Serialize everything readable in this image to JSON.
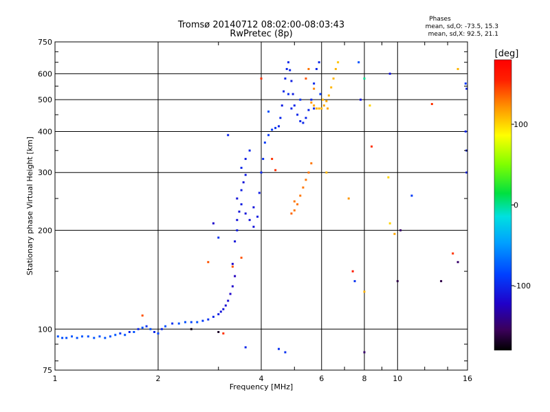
{
  "chart_data": {
    "type": "scatter",
    "title": "Tromsø 20140712 08:02:00-08:03:43",
    "subtitle": "RwPretec (8p)",
    "xlabel": "Frequency [MHz]",
    "ylabel": "Stationary phase Virtual Height [km]",
    "x_scale": "log",
    "y_scale": "log",
    "xlim": [
      1,
      16
    ],
    "ylim": [
      75,
      750
    ],
    "x_ticks": [
      1,
      2,
      4,
      6,
      8,
      10,
      16
    ],
    "x_tick_labels": [
      "1",
      "2",
      "4",
      "6",
      "8",
      "10",
      "16"
    ],
    "y_ticks": [
      75,
      100,
      200,
      300,
      400,
      500,
      600,
      750
    ],
    "y_tick_labels": [
      "75",
      "100",
      "200",
      "300",
      "400",
      "500",
      "600",
      "750"
    ],
    "grid": true,
    "phase_legend": {
      "heading": "Phases",
      "line1": "mean, sd,O: -73.5, 15.3",
      "line2": "mean, sd,X:  92.5, 21.1"
    },
    "colorbar": {
      "label": "[deg]",
      "range": [
        -180,
        180
      ],
      "ticks": [
        100,
        0,
        -100
      ],
      "tick_labels": [
        "100",
        "0",
        "-100"
      ],
      "colormap": "rainbow"
    },
    "series": [
      {
        "name": "",
        "points": [
          [
            1.02,
            95,
            -80
          ],
          [
            1.05,
            94,
            -80
          ],
          [
            1.08,
            94,
            -80
          ],
          [
            1.12,
            95,
            -78
          ],
          [
            1.16,
            94,
            -80
          ],
          [
            1.2,
            95,
            -78
          ],
          [
            1.25,
            95,
            -80
          ],
          [
            1.3,
            94,
            -78
          ],
          [
            1.35,
            95,
            -80
          ],
          [
            1.4,
            94,
            -78
          ],
          [
            1.45,
            95,
            -80
          ],
          [
            1.5,
            96,
            -78
          ],
          [
            1.55,
            97,
            -90
          ],
          [
            1.6,
            96,
            -80
          ],
          [
            1.65,
            98,
            -100
          ],
          [
            1.7,
            98,
            -80
          ],
          [
            1.75,
            100,
            -100
          ],
          [
            1.8,
            101,
            -80
          ],
          [
            1.85,
            102,
            -95
          ],
          [
            1.9,
            100,
            -80
          ],
          [
            1.95,
            98,
            -100
          ],
          [
            2.0,
            97,
            -85
          ],
          [
            2.05,
            100,
            -100
          ],
          [
            2.1,
            102,
            -80
          ],
          [
            2.2,
            104,
            -95
          ],
          [
            2.3,
            104,
            -80
          ],
          [
            2.4,
            105,
            -80
          ],
          [
            2.5,
            105,
            -85
          ],
          [
            2.6,
            105,
            -80
          ],
          [
            2.7,
            106,
            -90
          ],
          [
            2.8,
            107,
            -95
          ],
          [
            2.9,
            109,
            -100
          ],
          [
            3.0,
            111,
            -105
          ],
          [
            3.05,
            113,
            -110
          ],
          [
            3.1,
            115,
            -110
          ],
          [
            3.15,
            118,
            -115
          ],
          [
            3.2,
            122,
            -115
          ],
          [
            3.25,
            128,
            -120
          ],
          [
            3.3,
            135,
            -120
          ],
          [
            3.35,
            145,
            -125
          ],
          [
            3.3,
            158,
            -120
          ],
          [
            3.35,
            185,
            -110
          ],
          [
            3.4,
            200,
            -105
          ],
          [
            3.4,
            215,
            -110
          ],
          [
            3.45,
            228,
            -110
          ],
          [
            3.5,
            240,
            -105
          ],
          [
            3.4,
            250,
            -110
          ],
          [
            3.5,
            265,
            -105
          ],
          [
            3.55,
            280,
            -110
          ],
          [
            3.6,
            295,
            -105
          ],
          [
            3.5,
            310,
            -100
          ],
          [
            3.6,
            330,
            -105
          ],
          [
            3.7,
            350,
            -100
          ],
          [
            3.6,
            225,
            -110
          ],
          [
            3.7,
            215,
            -110
          ],
          [
            3.8,
            205,
            -110
          ],
          [
            3.9,
            220,
            -105
          ],
          [
            3.8,
            235,
            -110
          ],
          [
            3.95,
            260,
            -105
          ],
          [
            4.0,
            300,
            -100
          ],
          [
            4.05,
            330,
            -95
          ],
          [
            4.1,
            370,
            -90
          ],
          [
            4.2,
            390,
            -90
          ],
          [
            4.3,
            405,
            -90
          ],
          [
            4.4,
            410,
            -95
          ],
          [
            4.5,
            415,
            -100
          ],
          [
            4.55,
            440,
            -100
          ],
          [
            4.6,
            480,
            -105
          ],
          [
            4.65,
            530,
            -100
          ],
          [
            4.7,
            580,
            -100
          ],
          [
            4.75,
            620,
            -100
          ],
          [
            4.8,
            650,
            -100
          ],
          [
            4.85,
            615,
            -100
          ],
          [
            4.9,
            570,
            -105
          ],
          [
            4.95,
            520,
            -105
          ],
          [
            5.0,
            480,
            -100
          ],
          [
            5.1,
            450,
            -100
          ],
          [
            5.2,
            430,
            -100
          ],
          [
            5.3,
            425,
            -100
          ],
          [
            5.4,
            440,
            -100
          ],
          [
            5.5,
            465,
            -100
          ],
          [
            5.6,
            500,
            -100
          ],
          [
            5.7,
            560,
            -100
          ],
          [
            5.8,
            620,
            -100
          ],
          [
            5.9,
            650,
            -100
          ],
          [
            5.95,
            520,
            -90
          ],
          [
            4.2,
            460,
            -80
          ],
          [
            4.8,
            520,
            -95
          ],
          [
            4.9,
            470,
            -100
          ],
          [
            5.2,
            500,
            -95
          ],
          [
            5.7,
            470,
            -100
          ],
          [
            3.0,
            190,
            -95
          ],
          [
            3.2,
            390,
            -100
          ]
        ]
      },
      {
        "name": "",
        "points": [
          [
            5.6,
            490,
            120
          ],
          [
            5.7,
            480,
            115
          ],
          [
            5.8,
            470,
            110
          ],
          [
            5.9,
            470,
            110
          ],
          [
            6.0,
            470,
            110
          ],
          [
            6.1,
            480,
            115
          ],
          [
            6.2,
            495,
            115
          ],
          [
            6.3,
            515,
            110
          ],
          [
            6.4,
            545,
            110
          ],
          [
            6.5,
            580,
            110
          ],
          [
            6.6,
            620,
            110
          ],
          [
            6.7,
            650,
            105
          ],
          [
            6.05,
            500,
            110
          ],
          [
            6.25,
            470,
            115
          ],
          [
            5.7,
            540,
            125
          ],
          [
            5.5,
            620,
            130
          ],
          [
            5.4,
            580,
            140
          ],
          [
            5.0,
            230,
            130
          ],
          [
            5.1,
            240,
            130
          ],
          [
            5.2,
            255,
            130
          ],
          [
            5.3,
            270,
            130
          ],
          [
            5.4,
            285,
            130
          ],
          [
            5.0,
            245,
            130
          ],
          [
            5.5,
            300,
            130
          ],
          [
            5.6,
            320,
            130
          ],
          [
            4.9,
            225,
            135
          ]
        ]
      },
      {
        "name": "",
        "points": [
          [
            1.8,
            110,
            140
          ],
          [
            2.8,
            160,
            140
          ],
          [
            3.3,
            155,
            140
          ],
          [
            3.5,
            165,
            140
          ],
          [
            2.5,
            100,
            -175
          ],
          [
            3.1,
            97,
            150
          ],
          [
            4.0,
            580,
            150
          ],
          [
            4.4,
            305,
            150
          ],
          [
            6.2,
            300,
            110
          ],
          [
            7.2,
            250,
            120
          ],
          [
            7.4,
            150,
            160
          ],
          [
            8.0,
            130,
            110
          ],
          [
            8.4,
            360,
            150
          ],
          [
            8.3,
            480,
            100
          ],
          [
            9.4,
            290,
            100
          ],
          [
            9.5,
            210,
            100
          ],
          [
            9.8,
            195,
            115
          ],
          [
            10.2,
            200,
            -150
          ],
          [
            11.0,
            255,
            -90
          ],
          [
            12.6,
            485,
            150
          ],
          [
            14.5,
            170,
            150
          ],
          [
            15.0,
            160,
            -150
          ],
          [
            15.0,
            620,
            110
          ],
          [
            15.8,
            560,
            -90
          ],
          [
            15.9,
            540,
            -100
          ],
          [
            15.8,
            400,
            -100
          ],
          [
            15.9,
            350,
            -100
          ],
          [
            15.9,
            300,
            -105
          ],
          [
            7.7,
            650,
            -80
          ],
          [
            8.0,
            580,
            0
          ],
          [
            7.8,
            500,
            -110
          ],
          [
            9.5,
            600,
            -110
          ],
          [
            10.0,
            140,
            -160
          ],
          [
            13.4,
            140,
            -160
          ],
          [
            8.0,
            85,
            -150
          ],
          [
            4.5,
            87,
            -95
          ],
          [
            4.7,
            85,
            -95
          ],
          [
            3.6,
            88,
            -100
          ],
          [
            3.0,
            98,
            -170
          ],
          [
            7.5,
            140,
            -95
          ],
          [
            4.3,
            330,
            150
          ],
          [
            2.9,
            210,
            -120
          ]
        ]
      }
    ]
  }
}
